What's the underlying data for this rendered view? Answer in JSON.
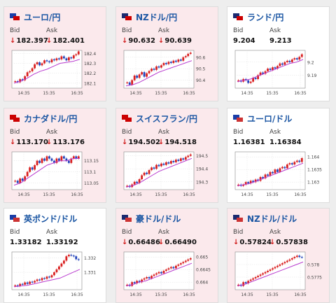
{
  "labels": {
    "bid": "Bid",
    "ask": "Ask"
  },
  "colors": {
    "up_candle": "#d91f1f",
    "down_candle": "#2244bb",
    "moving_average": "#b93ccf",
    "down_arrow": "#d01a1a",
    "title": "#1b56a3"
  },
  "cards": [
    {
      "id": "jpy-usd-euro",
      "name": "ユーロ/円",
      "flag": [
        "#1a3ea8",
        "#cc0000"
      ],
      "direction": "down",
      "bid": "182.397",
      "ask": "182.401",
      "chart_data": {
        "type": "line",
        "x_ticks": [
          "14:35",
          "15:35",
          "16:35"
        ],
        "y_ticks": [
          "182.4",
          "182.3",
          "182.2",
          "182.1"
        ],
        "y_tick_values": [
          182.4,
          182.3,
          182.2,
          182.1
        ],
        "ylim": [
          182.05,
          182.43
        ],
        "candles": [
          182.12,
          182.11,
          182.14,
          182.13,
          182.17,
          182.21,
          182.22,
          182.25,
          182.29,
          182.31,
          182.28,
          182.3,
          182.33,
          182.32,
          182.31,
          182.34,
          182.33,
          182.35,
          182.34,
          182.37,
          182.35,
          182.33,
          182.36,
          182.35,
          182.38,
          182.39,
          182.42
        ],
        "ma": [
          182.1,
          182.12,
          182.15,
          182.19,
          182.22,
          182.24,
          182.27,
          182.3,
          182.31,
          182.32,
          182.34
        ]
      }
    },
    {
      "id": "nzd-jpy",
      "name": "NZドル/円",
      "flag": [
        "#1a2a70",
        "#cc0000"
      ],
      "direction": "down",
      "bid": "90.632",
      "ask": "90.639",
      "chart_data": {
        "type": "line",
        "x_ticks": [
          "14:35",
          "15:35",
          "16:35"
        ],
        "y_ticks": [
          "90.6",
          "90.5",
          "90.4"
        ],
        "y_tick_values": [
          90.6,
          90.5,
          90.4
        ],
        "ylim": [
          90.33,
          90.66
        ],
        "candles": [
          90.38,
          90.36,
          90.4,
          90.44,
          90.42,
          90.45,
          90.47,
          90.43,
          90.46,
          90.48,
          90.5,
          90.49,
          90.52,
          90.51,
          90.53,
          90.55,
          90.54,
          90.56,
          90.55,
          90.57,
          90.56,
          90.58,
          90.57,
          90.6,
          90.61,
          90.63,
          90.64
        ],
        "ma": [
          90.35,
          90.36,
          90.38,
          90.41,
          90.44,
          90.47,
          90.49,
          90.51,
          90.53,
          90.55,
          90.57
        ]
      }
    },
    {
      "id": "zar-jpy",
      "name": "ランド/円",
      "flag": [
        "#1a2a70",
        "#cc0000"
      ],
      "direction": "flat",
      "bid": "9.204",
      "ask": "9.213",
      "chart_data": {
        "type": "line",
        "x_ticks": [
          "14:35",
          "15:35",
          "16:35"
        ],
        "y_ticks": [
          "9.2",
          "9.19"
        ],
        "y_tick_values": [
          9.2,
          9.19
        ],
        "ylim": [
          9.18,
          9.209
        ],
        "candles": [
          9.186,
          9.185,
          9.187,
          9.186,
          9.184,
          9.185,
          9.188,
          9.187,
          9.19,
          9.192,
          9.191,
          9.193,
          9.195,
          9.194,
          9.196,
          9.195,
          9.197,
          9.199,
          9.198,
          9.2,
          9.201,
          9.2,
          9.202,
          9.203,
          9.202,
          9.204,
          9.206
        ],
        "ma": [
          9.185,
          9.186,
          9.187,
          9.189,
          9.191,
          9.193,
          9.195,
          9.197,
          9.199,
          9.2,
          9.202
        ]
      }
    },
    {
      "id": "cad-jpy",
      "name": "カナダドル/円",
      "flag": [
        "#cc0000",
        "#cc0000"
      ],
      "direction": "down",
      "bid": "113.170",
      "ask": "113.176",
      "chart_data": {
        "type": "line",
        "x_ticks": [
          "14:35",
          "15:35",
          "16:35"
        ],
        "y_ticks": [
          "113.15",
          "113.1",
          "113.05"
        ],
        "y_tick_values": [
          113.15,
          113.1,
          113.05
        ],
        "ylim": [
          113.02,
          113.19
        ],
        "candles": [
          113.06,
          113.05,
          113.07,
          113.06,
          113.08,
          113.1,
          113.12,
          113.11,
          113.13,
          113.15,
          113.14,
          113.16,
          113.15,
          113.17,
          113.16,
          113.15,
          113.14,
          113.16,
          113.15,
          113.17,
          113.16,
          113.15,
          113.14,
          113.16,
          113.17,
          113.16,
          113.17
        ],
        "ma": [
          113.04,
          113.05,
          113.07,
          113.09,
          113.11,
          113.13,
          113.14,
          113.15,
          113.15,
          113.16,
          113.16
        ]
      }
    },
    {
      "id": "chf-jpy",
      "name": "スイスフラン/円",
      "flag": [
        "#cc0000",
        "#cc0000"
      ],
      "direction": "down",
      "bid": "194.502",
      "ask": "194.518",
      "chart_data": {
        "type": "line",
        "x_ticks": [
          "14:35",
          "15:35",
          "16:35"
        ],
        "y_ticks": [
          "194.5",
          "194.4",
          "194.3"
        ],
        "y_tick_values": [
          194.5,
          194.4,
          194.3
        ],
        "ylim": [
          194.24,
          194.53
        ],
        "candles": [
          194.27,
          194.26,
          194.28,
          194.3,
          194.29,
          194.32,
          194.35,
          194.37,
          194.36,
          194.39,
          194.41,
          194.4,
          194.43,
          194.42,
          194.44,
          194.43,
          194.45,
          194.44,
          194.46,
          194.45,
          194.47,
          194.46,
          194.48,
          194.47,
          194.49,
          194.5,
          194.51
        ],
        "ma": [
          194.26,
          194.27,
          194.29,
          194.32,
          194.35,
          194.38,
          194.4,
          194.42,
          194.44,
          194.46,
          194.48
        ]
      }
    },
    {
      "id": "eur-usd",
      "name": "ユーロ/ドル",
      "flag": [
        "#1a3ea8",
        "#cc3333"
      ],
      "direction": "flat",
      "bid": "1.16381",
      "ask": "1.16384",
      "chart_data": {
        "type": "line",
        "x_ticks": [
          "14:35",
          "15:35",
          "16:35"
        ],
        "y_ticks": [
          "1.164",
          "1.1635",
          "1.163"
        ],
        "y_tick_values": [
          1.164,
          1.1635,
          1.163
        ],
        "ylim": [
          1.1627,
          1.1642
        ],
        "candles": [
          1.1629,
          1.16285,
          1.1629,
          1.163,
          1.16295,
          1.16305,
          1.163,
          1.1631,
          1.16305,
          1.1632,
          1.16315,
          1.1633,
          1.16325,
          1.1634,
          1.16335,
          1.1635,
          1.1634,
          1.16355,
          1.1636,
          1.16355,
          1.1637,
          1.16375,
          1.1637,
          1.1638,
          1.16385,
          1.1638,
          1.16395
        ],
        "ma": [
          1.16285,
          1.1629,
          1.16295,
          1.16305,
          1.16315,
          1.16325,
          1.16335,
          1.16345,
          1.16355,
          1.16365,
          1.16375
        ]
      }
    },
    {
      "id": "gbp-usd",
      "name": "英ポンド/ドル",
      "flag": [
        "#1a3ea8",
        "#cc3333"
      ],
      "direction": "flat",
      "bid": "1.33182",
      "ask": "1.33192",
      "chart_data": {
        "type": "line",
        "x_ticks": [
          "14:35",
          "15:35",
          "16:35"
        ],
        "y_ticks": [
          "1.332",
          "1.331"
        ],
        "y_tick_values": [
          1.332,
          1.331
        ],
        "ylim": [
          1.3298,
          1.3324
        ],
        "candles": [
          1.3301,
          1.33005,
          1.3302,
          1.33015,
          1.3303,
          1.3302,
          1.33035,
          1.3303,
          1.3304,
          1.3305,
          1.33045,
          1.3306,
          1.33055,
          1.3307,
          1.33065,
          1.3308,
          1.331,
          1.3312,
          1.3314,
          1.3316,
          1.3318,
          1.3321,
          1.3322,
          1.33215,
          1.3321,
          1.3319,
          1.33185
        ],
        "ma": [
          1.33,
          1.33005,
          1.3301,
          1.3302,
          1.3303,
          1.3304,
          1.3305,
          1.3306,
          1.3308,
          1.331,
          1.3312
        ]
      }
    },
    {
      "id": "aud-usd",
      "name": "豪ドル/ドル",
      "flag": [
        "#1a2a70",
        "#cc3333"
      ],
      "direction": "down",
      "bid": "0.66486",
      "ask": "0.66490",
      "chart_data": {
        "type": "line",
        "x_ticks": [
          "14:35",
          "15:35",
          "16:35"
        ],
        "y_ticks": [
          "0.665",
          "0.6645",
          "0.664"
        ],
        "y_tick_values": [
          0.665,
          0.6645,
          0.664
        ],
        "ylim": [
          0.6637,
          0.6652
        ],
        "candles": [
          0.6639,
          0.66385,
          0.664,
          0.66395,
          0.66405,
          0.664,
          0.6641,
          0.66415,
          0.6642,
          0.66415,
          0.66425,
          0.6643,
          0.66435,
          0.6644,
          0.66435,
          0.66445,
          0.6645,
          0.66455,
          0.6646,
          0.66455,
          0.66465,
          0.6647,
          0.66475,
          0.6648,
          0.66485,
          0.6649,
          0.66495
        ],
        "ma": [
          0.66385,
          0.6639,
          0.664,
          0.66405,
          0.66415,
          0.66425,
          0.66435,
          0.66445,
          0.66455,
          0.66465,
          0.66475
        ]
      }
    },
    {
      "id": "nzd-usd",
      "name": "NZドル/ドル",
      "flag": [
        "#1a2a70",
        "#cc3333"
      ],
      "direction": "down",
      "bid": "0.57824",
      "ask": "0.57838",
      "chart_data": {
        "type": "line",
        "x_ticks": [
          "14:35",
          "15:35",
          "16:35"
        ],
        "y_ticks": [
          "0.578",
          "0.5775"
        ],
        "y_tick_values": [
          0.578,
          0.5775
        ],
        "ylim": [
          0.577,
          0.5785
        ],
        "candles": [
          0.5772,
          0.57715,
          0.5773,
          0.57725,
          0.57735,
          0.5774,
          0.57745,
          0.5775,
          0.57755,
          0.5776,
          0.57765,
          0.5777,
          0.57775,
          0.5778,
          0.57785,
          0.5779,
          0.57795,
          0.578,
          0.57805,
          0.5781,
          0.57815,
          0.5782,
          0.57825,
          0.5783,
          0.57835,
          0.5783,
          0.57828
        ],
        "ma": [
          0.57715,
          0.5772,
          0.5773,
          0.5774,
          0.5775,
          0.5776,
          0.5777,
          0.5778,
          0.5779,
          0.578,
          0.5781
        ]
      }
    }
  ]
}
